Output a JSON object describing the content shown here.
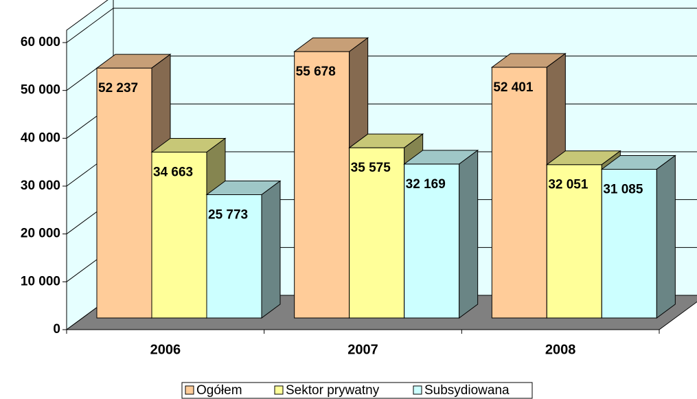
{
  "chart_data": {
    "type": "bar3d",
    "categories": [
      "2006",
      "2007",
      "2008"
    ],
    "series": [
      {
        "name": "Ogółem",
        "color": "#ffcc99",
        "values": [
          52237,
          55678,
          52401
        ],
        "value_labels": [
          "52 237",
          "55 678",
          "52 401"
        ]
      },
      {
        "name": "Sektor prywatny",
        "color": "#ffff99",
        "values": [
          34663,
          35575,
          32051
        ],
        "value_labels": [
          "34 663",
          "35 575",
          "32 051"
        ]
      },
      {
        "name": "Subsydiowana",
        "color": "#ccffff",
        "values": [
          25773,
          32169,
          31085
        ],
        "value_labels": [
          "25 773",
          "32 169",
          "31 085"
        ]
      }
    ],
    "ylim": [
      0,
      60000
    ],
    "yticks": [
      0,
      {
        "value": 10000,
        "label": "10 000"
      },
      {
        "value": 20000,
        "label": "20 000"
      },
      {
        "value": 30000,
        "label": "30 000"
      },
      {
        "value": 40000,
        "label": "40 000"
      },
      {
        "value": 50000,
        "label": "50 000"
      },
      {
        "value": 60000,
        "label": "60 000"
      }
    ],
    "grid": true,
    "legend": "bottom"
  }
}
